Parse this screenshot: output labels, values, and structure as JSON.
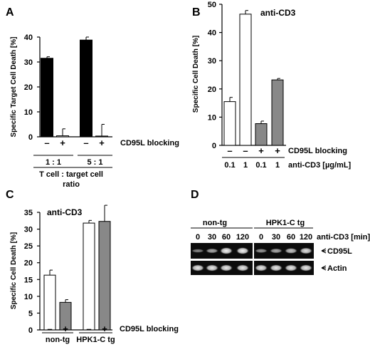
{
  "chart_data": [
    {
      "panel": "A",
      "type": "bar",
      "ylabel": "Specific Target Cell Death",
      "ylabel_unit": "[%]",
      "ylim": [
        0,
        40
      ],
      "yticks": [
        "0",
        "10",
        "20",
        "30",
        "40"
      ],
      "bars": [
        {
          "value": 31.5,
          "err": 0.6,
          "fill": "#000000"
        },
        {
          "value": 0.4,
          "err": 2.8,
          "fill": "#ffffff"
        },
        {
          "value": 38.8,
          "err": 1.2,
          "fill": "#000000"
        },
        {
          "value": 0.3,
          "err": 4.7,
          "fill": "#ffffff"
        }
      ],
      "row1": [
        "–",
        "+",
        "–",
        "+"
      ],
      "row1_label": "CD95L blocking",
      "groups": [
        "1 : 1",
        "5 : 1"
      ],
      "group_caption_1": "T cell : target cell",
      "group_caption_2": "ratio"
    },
    {
      "panel": "B",
      "type": "bar",
      "title": "anti-CD3",
      "ylabel": "Specific Cell Death",
      "ylabel_unit": "[%]",
      "ylim": [
        0,
        50
      ],
      "yticks": [
        "0",
        "10",
        "20",
        "30",
        "40",
        "50"
      ],
      "bars": [
        {
          "value": 15.5,
          "err": 1.5,
          "fill": "#ffffff"
        },
        {
          "value": 46.5,
          "err": 1.3,
          "fill": "#ffffff"
        },
        {
          "value": 7.7,
          "err": 0.9,
          "fill": "#888888"
        },
        {
          "value": 23.2,
          "err": 0.5,
          "fill": "#888888"
        }
      ],
      "row1": [
        "–",
        "–",
        "+",
        "+"
      ],
      "row1_label": "CD95L blocking",
      "row2": [
        "0.1",
        "1",
        "0.1",
        "1"
      ],
      "row2_label": "anti-CD3 [µg/mL]"
    },
    {
      "panel": "C",
      "type": "bar",
      "title": "anti-CD3",
      "ylabel": "Specific Cell Death",
      "ylabel_unit": "[%]",
      "ylim": [
        0,
        35
      ],
      "yticks": [
        "0",
        "5",
        "10",
        "15",
        "20",
        "25",
        "30",
        "35"
      ],
      "bars": [
        {
          "value": 16.3,
          "err": 1.5,
          "fill": "#ffffff"
        },
        {
          "value": 8.2,
          "err": 0.8,
          "fill": "#888888"
        },
        {
          "value": 31.8,
          "err": 0.8,
          "fill": "#ffffff"
        },
        {
          "value": 32.3,
          "err": 4.8,
          "fill": "#888888"
        }
      ],
      "row1": [
        "–",
        "+",
        "–",
        "+"
      ],
      "row1_label": "CD95L blocking",
      "groups": [
        "non-tg",
        "HPK1-C tg"
      ]
    }
  ],
  "blot": {
    "panel": "D",
    "groups": [
      "non-tg",
      "HPK1-C tg"
    ],
    "times": [
      "0",
      "30",
      "60",
      "120",
      "0",
      "30",
      "60",
      "120"
    ],
    "times_label": "anti-CD3 [min]",
    "cd95l_label": "CD95L",
    "actin_label": "Actin",
    "cd95l_intensity": [
      0.35,
      0.55,
      0.95,
      0.95,
      0.45,
      0.55,
      0.7,
      0.85
    ],
    "actin_intensity": [
      0.9,
      0.9,
      0.9,
      0.9,
      0.9,
      0.9,
      0.9,
      0.9
    ]
  },
  "colors": {
    "black_bar": "#000000",
    "gray_bar": "#888888",
    "white_bar": "#ffffff",
    "blot_bg": "#0c0c0c"
  }
}
